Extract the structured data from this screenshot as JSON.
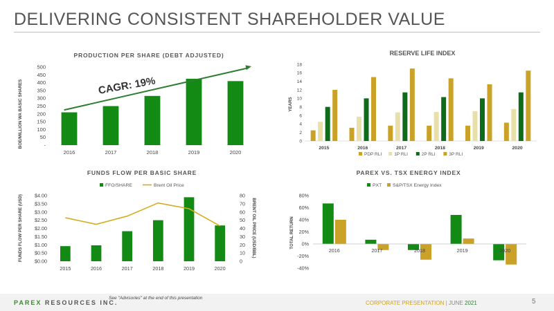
{
  "page": {
    "title": "DELIVERING CONSISTENT SHAREHOLDER VALUE",
    "company": "PAREX RESOURCES INC.",
    "advisory": "See \"Advisories\" at the end of this presentation",
    "footer_label": "CORPORATE PRESENTATION",
    "footer_separator": "|",
    "footer_date": "JUNE",
    "footer_year": "2021",
    "page_number": "5"
  },
  "colors": {
    "green": "#138a13",
    "dark_green": "#0d6b1a",
    "gold": "#c9a227",
    "pale": "#e8e0a8",
    "gold_line": "#d4ad1e",
    "arrow": "#2e7d32",
    "grid": "#d9d9d9",
    "axis_text": "#444444"
  },
  "chart_data": [
    {
      "id": "production",
      "type": "bar",
      "title": "PRODUCTION PER SHARE (DEBT ADJUSTED)",
      "ylabel": "BOE/MILLION WA BASIC SHARES",
      "categories": [
        "2016",
        "2017",
        "2018",
        "2019",
        "2020"
      ],
      "series": [
        {
          "values": [
            210,
            250,
            315,
            425,
            410
          ]
        }
      ],
      "ylim": [
        0,
        500
      ],
      "yticks": [
        0,
        50,
        100,
        150,
        200,
        250,
        300,
        350,
        400,
        450,
        500
      ],
      "yticklabels": [
        "-",
        "50",
        "100",
        "150",
        "200",
        "250",
        "300",
        "350",
        "400",
        "450",
        "500"
      ],
      "grid": false,
      "annotation": "CAGR: 19%"
    },
    {
      "id": "reserve",
      "type": "bar",
      "title": "RESERVE LIFE INDEX",
      "ylabel": "YEARS",
      "categories": [
        "2015",
        "2016",
        "2017",
        "2018",
        "2019",
        "2020"
      ],
      "series": [
        {
          "name": "PDP RLI",
          "color": "#c9a227",
          "values": [
            2.5,
            3.1,
            3.6,
            3.6,
            3.6,
            4.3
          ]
        },
        {
          "name": "1P RLI",
          "color": "#e8e0a8",
          "values": [
            4.5,
            5.7,
            6.7,
            6.8,
            7.0,
            7.5
          ]
        },
        {
          "name": "2P RLI",
          "color": "#0d6b1a",
          "values": [
            8.0,
            10.0,
            11.4,
            10.3,
            10.0,
            11.4
          ]
        },
        {
          "name": "3P RLI",
          "color": "#c9a227",
          "values": [
            12.0,
            15.0,
            17.0,
            14.7,
            13.3,
            16.5
          ]
        }
      ],
      "ylim": [
        0,
        18
      ],
      "yticks": [
        0,
        2,
        4,
        6,
        8,
        10,
        12,
        14,
        16,
        18
      ],
      "grid": false,
      "legend": "bottom"
    },
    {
      "id": "funds",
      "type": "bar",
      "title": "FUNDS FLOW PER BASIC SHARE",
      "ylabel": "FUNDS FLOW PER SHARE (USD)",
      "ylabel_right": "BRENT OIL PRICE (USD/BBL)",
      "categories": [
        "2015",
        "2016",
        "2017",
        "2018",
        "2019",
        "2020"
      ],
      "series": [
        {
          "name": "FFO/SHARE",
          "color": "#138a13",
          "type": "bar",
          "values": [
            0.92,
            0.97,
            1.83,
            2.5,
            3.9,
            2.18
          ]
        },
        {
          "name": "Brent Oil Price",
          "color": "#d4ad1e",
          "type": "line",
          "axis": "right",
          "values": [
            53,
            45,
            55,
            71,
            64,
            43
          ]
        }
      ],
      "ylim": [
        0,
        4
      ],
      "yticks": [
        0,
        0.5,
        1,
        1.5,
        2,
        2.5,
        3,
        3.5,
        4
      ],
      "yticklabels": [
        "$0.00",
        "$0.50",
        "$1.00",
        "$1.50",
        "$2.00",
        "$2.50",
        "$3.00",
        "$3.50",
        "$4.00"
      ],
      "ylim_right": [
        0,
        80
      ],
      "yticks_right": [
        0,
        10,
        20,
        30,
        40,
        50,
        60,
        70,
        80
      ],
      "grid": false,
      "legend": "top"
    },
    {
      "id": "parex",
      "type": "bar",
      "title": "PAREX VS. TSX ENERGY INDEX",
      "ylabel": "TOTAL RETURN",
      "categories": [
        "2016",
        "2017",
        "2018",
        "2019",
        "2020"
      ],
      "series": [
        {
          "name": "PXT",
          "color": "#138a13",
          "values": [
            67,
            7,
            -10,
            48,
            -27
          ]
        },
        {
          "name": "S&P/TSX Energy Index",
          "color": "#c9a227",
          "values": [
            40,
            -10,
            -26,
            9,
            -34
          ]
        }
      ],
      "ylim": [
        -40,
        80
      ],
      "yticks": [
        -40,
        -20,
        0,
        20,
        40,
        60,
        80
      ],
      "yticklabels": [
        "-40%",
        "-20%",
        "0%",
        "20%",
        "40%",
        "60%",
        "80%"
      ],
      "grid": false,
      "legend": "top"
    }
  ]
}
